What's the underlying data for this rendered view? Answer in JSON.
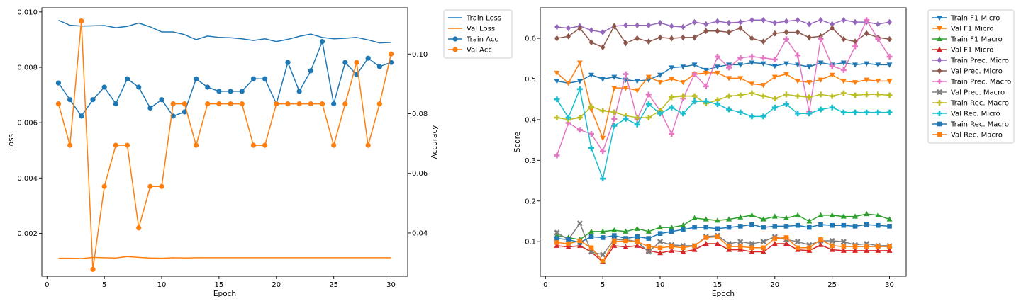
{
  "chart_data": [
    {
      "type": "line",
      "xlabel": "Epoch",
      "ylabel": "Loss",
      "ylabel_right": "Accuracy",
      "xlim": [
        -0.45,
        31.45
      ],
      "ylim": [
        0.00045,
        0.01015
      ],
      "ylim_right": [
        0.0255,
        0.1155
      ],
      "x_ticks": [
        0,
        5,
        10,
        15,
        20,
        25,
        30
      ],
      "y_ticks": [
        0.002,
        0.004,
        0.006,
        0.008,
        0.01
      ],
      "y_tick_labels": [
        "0.002",
        "0.004",
        "0.006",
        "0.008",
        "0.010"
      ],
      "y_ticks_right": [
        0.04,
        0.06,
        0.08,
        0.1
      ],
      "y_tick_labels_right": [
        "0.04",
        "0.06",
        "0.08",
        "0.10"
      ],
      "legend": "outside-top-right",
      "grid": false,
      "x": [
        1,
        2,
        3,
        4,
        5,
        6,
        7,
        8,
        9,
        10,
        11,
        12,
        13,
        14,
        15,
        16,
        17,
        18,
        19,
        20,
        21,
        22,
        23,
        24,
        25,
        26,
        27,
        28,
        29,
        30
      ],
      "series": [
        {
          "name": "Train Loss",
          "axis": "left",
          "color": "#1f77b4",
          "marker": "none",
          "values": [
            0.0097,
            0.00952,
            0.00949,
            0.0095,
            0.00951,
            0.00943,
            0.00948,
            0.0096,
            0.00946,
            0.00928,
            0.00928,
            0.00918,
            0.009,
            0.00913,
            0.00908,
            0.00907,
            0.00903,
            0.00897,
            0.00903,
            0.00893,
            0.00901,
            0.00912,
            0.0092,
            0.00908,
            0.00903,
            0.00905,
            0.00908,
            0.00899,
            0.00888,
            0.0089
          ]
        },
        {
          "name": "Val Loss",
          "axis": "left",
          "color": "#ff7f0e",
          "marker": "none",
          "values": [
            0.0011,
            0.0011,
            0.00109,
            0.00113,
            0.00112,
            0.00111,
            0.00116,
            0.00113,
            0.00111,
            0.0011,
            0.00112,
            0.00111,
            0.00112,
            0.00112,
            0.00112,
            0.00112,
            0.00112,
            0.00112,
            0.00112,
            0.00112,
            0.00112,
            0.00112,
            0.00112,
            0.00112,
            0.00112,
            0.00112,
            0.00112,
            0.00112,
            0.00112,
            0.00112
          ]
        },
        {
          "name": "Train Acc",
          "axis": "right",
          "color": "#1f77b4",
          "marker": "circle",
          "values": [
            0.0903,
            0.0847,
            0.0792,
            0.0847,
            0.0889,
            0.0833,
            0.0917,
            0.0889,
            0.0819,
            0.0847,
            0.0792,
            0.0806,
            0.0917,
            0.0889,
            0.0875,
            0.0875,
            0.0875,
            0.0917,
            0.0917,
            0.0833,
            0.0972,
            0.0875,
            0.0944,
            0.1042,
            0.0833,
            0.0972,
            0.0931,
            0.0986,
            0.0958,
            0.0972
          ]
        },
        {
          "name": "Val Acc",
          "axis": "right",
          "color": "#ff7f0e",
          "marker": "circle",
          "values": [
            0.0833,
            0.0694,
            0.1111,
            0.0278,
            0.0556,
            0.0694,
            0.0694,
            0.0417,
            0.0556,
            0.0556,
            0.0833,
            0.0833,
            0.0694,
            0.0833,
            0.0833,
            0.0833,
            0.0833,
            0.0694,
            0.0694,
            0.0833,
            0.0833,
            0.0833,
            0.0833,
            0.0833,
            0.0694,
            0.0833,
            0.0972,
            0.0694,
            0.0833,
            0.1
          ]
        }
      ]
    },
    {
      "type": "line",
      "xlabel": "Epoch",
      "ylabel": "Score",
      "xlim": [
        -0.45,
        31.45
      ],
      "ylim": [
        0.015,
        0.675
      ],
      "x_ticks": [
        0,
        5,
        10,
        15,
        20,
        25,
        30
      ],
      "y_ticks": [
        0.1,
        0.2,
        0.3,
        0.4,
        0.5,
        0.6
      ],
      "y_tick_labels": [
        "0.1",
        "0.2",
        "0.3",
        "0.4",
        "0.5",
        "0.6"
      ],
      "legend": "outside-top-right",
      "grid": false,
      "x": [
        1,
        2,
        3,
        4,
        5,
        6,
        7,
        8,
        9,
        10,
        11,
        12,
        13,
        14,
        15,
        16,
        17,
        18,
        19,
        20,
        21,
        22,
        23,
        24,
        25,
        26,
        27,
        28,
        29,
        30
      ],
      "series": [
        {
          "name": "Train F1 Micro",
          "color": "#1f77b4",
          "marker": "triangle-down",
          "values": [
            0.495,
            0.49,
            0.495,
            0.51,
            0.5,
            0.505,
            0.498,
            0.495,
            0.498,
            0.51,
            0.528,
            0.53,
            0.535,
            0.522,
            0.53,
            0.535,
            0.535,
            0.54,
            0.538,
            0.532,
            0.538,
            0.535,
            0.53,
            0.54,
            0.535,
            0.54,
            0.535,
            0.538,
            0.535,
            0.535
          ]
        },
        {
          "name": "Val F1 Micro",
          "color": "#ff7f0e",
          "marker": "triangle-down",
          "values": [
            0.515,
            0.49,
            0.54,
            0.425,
            0.355,
            0.478,
            0.478,
            0.472,
            0.505,
            0.492,
            0.5,
            0.492,
            0.512,
            0.515,
            0.515,
            0.502,
            0.502,
            0.488,
            0.485,
            0.505,
            0.512,
            0.495,
            0.492,
            0.498,
            0.51,
            0.495,
            0.492,
            0.498,
            0.495,
            0.495
          ]
        },
        {
          "name": "Train F1 Macro",
          "color": "#2ca02c",
          "marker": "triangle-up",
          "values": [
            0.115,
            0.11,
            0.105,
            0.125,
            0.125,
            0.128,
            0.125,
            0.132,
            0.125,
            0.135,
            0.135,
            0.14,
            0.158,
            0.155,
            0.152,
            0.155,
            0.16,
            0.165,
            0.155,
            0.162,
            0.158,
            0.165,
            0.15,
            0.165,
            0.165,
            0.162,
            0.162,
            0.168,
            0.165,
            0.155
          ]
        },
        {
          "name": "Val F1 Micro",
          "color": "#d62728",
          "marker": "triangle-up",
          "values": [
            0.09,
            0.087,
            0.09,
            0.075,
            0.05,
            0.09,
            0.087,
            0.09,
            0.078,
            0.072,
            0.078,
            0.075,
            0.08,
            0.095,
            0.095,
            0.08,
            0.08,
            0.075,
            0.075,
            0.095,
            0.095,
            0.08,
            0.078,
            0.092,
            0.08,
            0.078,
            0.078,
            0.078,
            0.078,
            0.078
          ]
        },
        {
          "name": "Train Prec. Micro",
          "color": "#9467bd",
          "marker": "diamond",
          "values": [
            0.628,
            0.625,
            0.63,
            0.62,
            0.615,
            0.63,
            0.632,
            0.632,
            0.632,
            0.638,
            0.63,
            0.628,
            0.64,
            0.635,
            0.642,
            0.638,
            0.64,
            0.645,
            0.645,
            0.638,
            0.642,
            0.645,
            0.635,
            0.645,
            0.635,
            0.645,
            0.64,
            0.64,
            0.635,
            0.64
          ]
        },
        {
          "name": "Val Prec. Micro",
          "color": "#8c564b",
          "marker": "diamond",
          "values": [
            0.6,
            0.605,
            0.625,
            0.59,
            0.578,
            0.63,
            0.588,
            0.6,
            0.592,
            0.602,
            0.6,
            0.602,
            0.602,
            0.618,
            0.618,
            0.615,
            0.625,
            0.6,
            0.592,
            0.612,
            0.615,
            0.615,
            0.602,
            0.605,
            0.625,
            0.598,
            0.592,
            0.612,
            0.602,
            0.598
          ]
        },
        {
          "name": "Train Prec. Macro",
          "color": "#e377c2",
          "marker": "plus",
          "values": [
            0.312,
            0.392,
            0.375,
            0.365,
            0.322,
            0.402,
            0.512,
            0.402,
            0.462,
            0.422,
            0.365,
            0.452,
            0.512,
            0.482,
            0.555,
            0.528,
            0.552,
            0.555,
            0.552,
            0.548,
            0.598,
            0.558,
            0.42,
            0.598,
            0.532,
            0.522,
            0.58,
            0.645,
            0.598,
            0.555
          ]
        },
        {
          "name": "Val Prec. Macro",
          "color": "#7f7f7f",
          "marker": "x",
          "values": [
            0.122,
            0.105,
            0.145,
            0.075,
            0.068,
            0.105,
            0.105,
            0.1,
            0.075,
            0.1,
            0.092,
            0.09,
            0.09,
            0.112,
            0.115,
            0.095,
            0.1,
            0.095,
            0.1,
            0.112,
            0.105,
            0.1,
            0.092,
            0.102,
            0.102,
            0.1,
            0.092,
            0.095,
            0.09,
            0.09
          ]
        },
        {
          "name": "Train Rec. Macro",
          "color": "#bcbd22",
          "marker": "plus",
          "values": [
            0.405,
            0.4,
            0.405,
            0.432,
            0.422,
            0.418,
            0.41,
            0.405,
            0.405,
            0.422,
            0.455,
            0.458,
            0.458,
            0.44,
            0.448,
            0.458,
            0.46,
            0.465,
            0.458,
            0.452,
            0.462,
            0.458,
            0.455,
            0.462,
            0.458,
            0.465,
            0.46,
            0.462,
            0.462,
            0.46
          ]
        },
        {
          "name": "Val Rec. Micro",
          "color": "#17becf",
          "marker": "plus",
          "values": [
            0.45,
            0.405,
            0.475,
            0.33,
            0.255,
            0.385,
            0.402,
            0.388,
            0.438,
            0.415,
            0.43,
            0.415,
            0.445,
            0.445,
            0.438,
            0.425,
            0.418,
            0.408,
            0.408,
            0.43,
            0.438,
            0.415,
            0.415,
            0.425,
            0.43,
            0.418,
            0.418,
            0.418,
            0.418,
            0.418
          ]
        },
        {
          "name": "Train Rec. Macro",
          "color": "#1f77b4",
          "marker": "square",
          "values": [
            0.108,
            0.105,
            0.098,
            0.112,
            0.11,
            0.115,
            0.108,
            0.112,
            0.108,
            0.12,
            0.125,
            0.13,
            0.135,
            0.135,
            0.132,
            0.135,
            0.138,
            0.142,
            0.135,
            0.138,
            0.138,
            0.14,
            0.135,
            0.142,
            0.14,
            0.14,
            0.138,
            0.142,
            0.14,
            0.138
          ]
        },
        {
          "name": "Val Rec. Macro",
          "color": "#ff7f0e",
          "marker": "square",
          "values": [
            0.098,
            0.095,
            0.102,
            0.085,
            0.052,
            0.1,
            0.102,
            0.1,
            0.088,
            0.085,
            0.088,
            0.085,
            0.09,
            0.11,
            0.112,
            0.088,
            0.088,
            0.085,
            0.085,
            0.108,
            0.11,
            0.085,
            0.085,
            0.105,
            0.09,
            0.088,
            0.088,
            0.088,
            0.088,
            0.088
          ]
        }
      ]
    }
  ]
}
